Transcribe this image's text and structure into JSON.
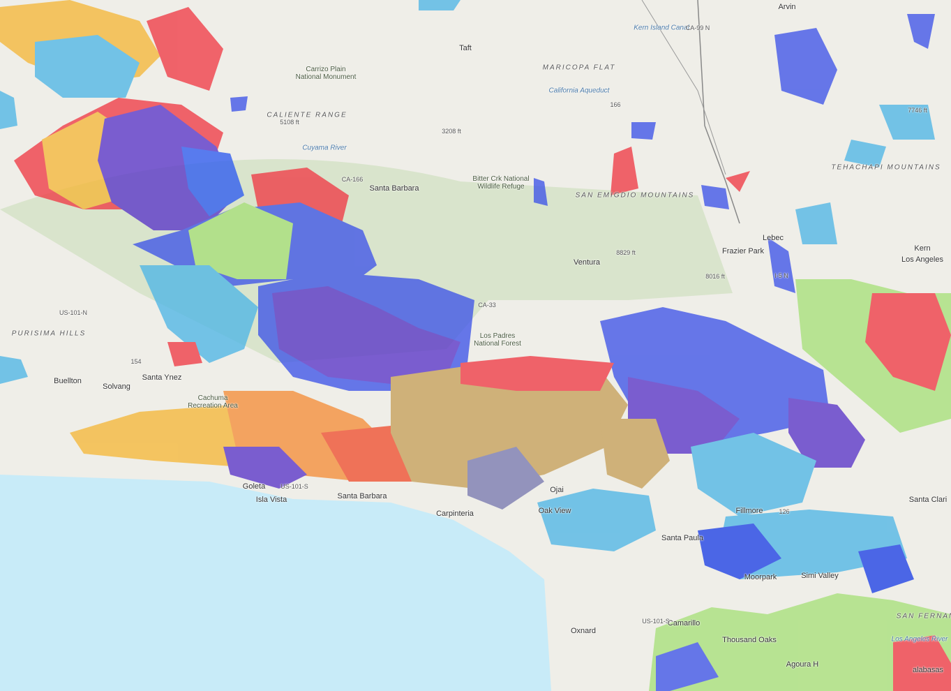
{
  "labels": [
    "Arvin",
    "Taft",
    "MARICOPA FLAT",
    "California Aqueduct",
    "Kern Island Canal",
    "166",
    "Carrizo Plain National Monument",
    "CALIENTE RANGE",
    "5108 ft",
    "3208 ft",
    "Cuyama River",
    "CA-166",
    "Santa Barbara",
    "Bitter Crk National Wildlife Refuge",
    "SAN EMIGDIO MOUNTAINS",
    "7746 ft",
    "TEHACHAPI MOUNTAINS",
    "Lebec",
    "Frazier Park",
    "Kern",
    "Los Angeles",
    "Ventura",
    "8829 ft",
    "8016 ft",
    "CA-33",
    "Los Padres National Forest",
    "PURISIMA HILLS",
    "US-101-N",
    "154",
    "Buellton",
    "Solvang",
    "Santa Ynez",
    "Cachuma Recreation Area",
    "Goleta",
    "Isla Vista",
    "US-101-S",
    "Santa Barbara",
    "Carpinteria",
    "Ojai",
    "Oak View",
    "Fillmore",
    "126",
    "Santa Paula",
    "Santa Clari",
    "Moorpark",
    "Simi Valley",
    "Camarillo",
    "US-101-S",
    "Oxnard",
    "Thousand Oaks",
    "SAN FERNAN",
    "Los Angeles River",
    "Agoura H",
    "alabasas",
    "I-5 N",
    "CA-99 N"
  ]
}
